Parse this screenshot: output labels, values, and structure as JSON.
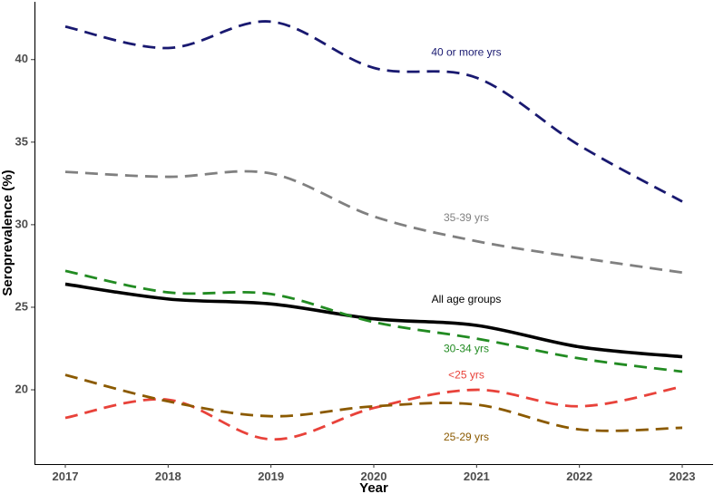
{
  "chart_data": {
    "type": "line",
    "title": "",
    "xlabel": "Year",
    "ylabel": "Seroprevalence (%)",
    "x": [
      2017,
      2018,
      2019,
      2020,
      2021,
      2022,
      2023
    ],
    "x_tick_labels": [
      "2017",
      "2018",
      "2019",
      "2020",
      "2021",
      "2022",
      "2023"
    ],
    "y_ticks": [
      20,
      25,
      30,
      35,
      40
    ],
    "y_tick_labels": [
      "20",
      "25",
      "30",
      "35",
      "40"
    ],
    "xlim": [
      2016.7,
      2023.3
    ],
    "ylim": [
      15.5,
      43.5
    ],
    "grid": false,
    "series": [
      {
        "name": "40 or more yrs",
        "color": "#191970",
        "dash": "dashed",
        "line_style": "smooth",
        "values": [
          42.0,
          40.7,
          42.3,
          39.5,
          38.9,
          34.8,
          31.4
        ],
        "label_at": [
          2020.9,
          40.4
        ]
      },
      {
        "name": "35-39 yrs",
        "color": "#808080",
        "dash": "dashed",
        "line_style": "smooth",
        "values": [
          33.2,
          32.9,
          33.1,
          30.5,
          29.0,
          28.0,
          27.1
        ],
        "label_at": [
          2020.9,
          30.4
        ]
      },
      {
        "name": "All age groups",
        "color": "#000000",
        "dash": "solid",
        "line_style": "smooth",
        "values": [
          26.4,
          25.5,
          25.2,
          24.3,
          23.9,
          22.6,
          22.0
        ],
        "label_at": [
          2020.9,
          25.45
        ]
      },
      {
        "name": "30-34 yrs",
        "color": "#228b22",
        "dash": "dashed",
        "line_style": "smooth",
        "values": [
          27.2,
          25.9,
          25.8,
          24.1,
          23.1,
          21.9,
          21.1
        ],
        "label_at": [
          2020.9,
          22.45
        ]
      },
      {
        "name": "<25 yrs",
        "color": "#e8423a",
        "dash": "dashed",
        "line_style": "smooth",
        "values": [
          18.3,
          19.4,
          17.0,
          18.9,
          20.0,
          19.0,
          20.2
        ],
        "label_at": [
          2020.9,
          20.85
        ]
      },
      {
        "name": "25-29 yrs",
        "color": "#8b5a00",
        "dash": "dashed",
        "line_style": "smooth",
        "values": [
          20.9,
          19.3,
          18.4,
          19.0,
          19.1,
          17.6,
          17.7
        ],
        "label_at": [
          2020.9,
          17.1
        ]
      }
    ]
  }
}
